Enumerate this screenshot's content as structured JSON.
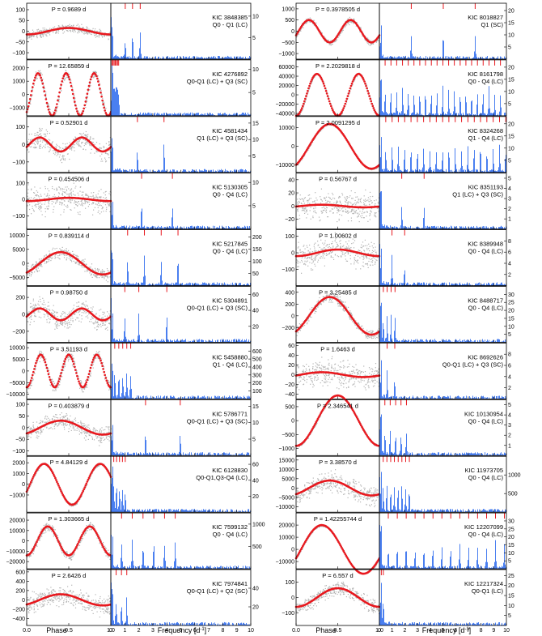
{
  "figure": {
    "left_xlabel_phase": "Phase",
    "left_xlabel_freq": "Frequency [d",
    "right_xlabel_phase": "Phase",
    "right_xlabel_freq": "Frequency [d",
    "freq_unit_sup": "-1",
    "freq_unit_close": "]"
  },
  "colors": {
    "phase_points": "#b4b4b4",
    "model_curve": "#e8181e",
    "spectrum": "#4a7ff0",
    "marker": "#e8181e",
    "axis": "#000000"
  },
  "chart_data": [
    {
      "type": "scatter",
      "column": "left",
      "row": 0,
      "period_label": "P = 0.9689 d",
      "kic": "KIC 3848385",
      "quarters": "Q0 - Q1 (LC)",
      "phase_yticks": [
        -100,
        -50,
        0,
        50,
        100
      ],
      "phase_ylim": [
        -130,
        130
      ],
      "amp": 15,
      "cycles": 1,
      "scatter": 18,
      "freq_ticks": [
        5,
        10
      ],
      "freq_ylim": [
        0,
        13
      ],
      "markers": [
        1.03,
        1.55,
        2.1
      ]
    },
    {
      "type": "scatter",
      "column": "left",
      "row": 1,
      "period_label": "P = 12.65859 d",
      "kic": "KIC 4276892",
      "quarters": "Q0-Q1 (LC) + Q3 (SC)",
      "phase_yticks": [
        -1000,
        0,
        1000,
        2000
      ],
      "phase_ylim": [
        -1600,
        2600
      ],
      "amp": 1600,
      "cycles": 3,
      "scatter": 20,
      "freq_ticks": [
        5,
        10
      ],
      "freq_ylim": [
        0,
        12
      ],
      "markers": [
        0.08,
        0.16,
        0.24,
        0.32,
        0.4,
        0.48,
        0.56
      ]
    },
    {
      "type": "scatter",
      "column": "left",
      "row": 2,
      "period_label": "P = 0.52901 d",
      "kic": "KIC 4581434",
      "quarters": "Q1 (LC) + Q3 (SC)",
      "phase_yticks": [
        -100,
        0,
        100
      ],
      "phase_ylim": [
        -160,
        160
      ],
      "amp": 40,
      "cycles": 2,
      "scatter": 40,
      "freq_ticks": [
        5,
        10,
        15
      ],
      "freq_ylim": [
        0,
        17
      ],
      "markers": [
        1.9,
        3.8
      ]
    },
    {
      "type": "scatter",
      "column": "left",
      "row": 3,
      "period_label": "P = 0.454506 d",
      "kic": "KIC 5130305",
      "quarters": "Q0 - Q4 (LC)",
      "phase_yticks": [
        -100,
        0,
        100
      ],
      "phase_ylim": [
        -180,
        160
      ],
      "amp": 10,
      "cycles": 1,
      "scatter": 55,
      "freq_ticks": [
        5,
        10
      ],
      "freq_ylim": [
        0,
        12
      ],
      "markers": [
        2.2,
        4.4
      ]
    },
    {
      "type": "scatter",
      "column": "left",
      "row": 4,
      "period_label": "P = 0.839114 d",
      "kic": "KIC 5217845",
      "quarters": "Q0 - Q4 (LC)",
      "phase_yticks": [
        -5000,
        0,
        5000,
        10000
      ],
      "phase_ylim": [
        -8000,
        12000
      ],
      "amp": 4000,
      "cycles": 1,
      "scatter": 25,
      "freq_ticks": [
        50,
        100,
        150,
        200
      ],
      "freq_ylim": [
        0,
        230
      ],
      "markers": [
        1.2,
        2.4,
        3.6,
        4.8
      ]
    },
    {
      "type": "scatter",
      "column": "left",
      "row": 5,
      "period_label": "P = 0.98750 d",
      "kic": "KIC 5304891",
      "quarters": "Q0-Q1 (LC) + Q3 (SC)",
      "phase_yticks": [
        -200,
        0,
        200
      ],
      "phase_ylim": [
        -330,
        330
      ],
      "amp": 70,
      "cycles": 2,
      "scatter": 45,
      "freq_ticks": [
        20,
        40,
        60
      ],
      "freq_ylim": [
        0,
        70
      ],
      "markers": [
        1.0,
        2.0,
        4.0
      ]
    },
    {
      "type": "scatter",
      "column": "left",
      "row": 6,
      "period_label": "P = 3.51193 d",
      "kic": "KIC 5458880",
      "quarters": "Q1 - Q4 (LC)",
      "phase_yticks": [
        -10000,
        -5000,
        0,
        5000,
        10000
      ],
      "phase_ylim": [
        -12000,
        12000
      ],
      "amp": 7000,
      "cycles": 3,
      "scatter": 22,
      "freq_ticks": [
        100,
        200,
        300,
        400,
        500,
        600
      ],
      "freq_ylim": [
        0,
        700
      ],
      "markers": [
        0.28,
        0.57,
        0.85,
        1.14,
        1.42
      ]
    },
    {
      "type": "scatter",
      "column": "left",
      "row": 7,
      "period_label": "P = 0.403879 d",
      "kic": "KIC 5786771",
      "quarters": "Q0-Q1 (LC) + Q3 (SC)",
      "phase_yticks": [
        -100,
        -50,
        0,
        50,
        100
      ],
      "phase_ylim": [
        -120,
        120
      ],
      "amp": 30,
      "cycles": 1,
      "scatter": 35,
      "freq_ticks": [
        5,
        10,
        15
      ],
      "freq_ylim": [
        0,
        17
      ],
      "markers": [
        2.48,
        4.96
      ]
    },
    {
      "type": "scatter",
      "column": "left",
      "row": 8,
      "period_label": "P = 4.84129 d",
      "kic": "KIC 6128830",
      "quarters": "Q0-Q1,Q3-Q4 (LC)",
      "phase_yticks": [
        -1000,
        0,
        1000,
        2000
      ],
      "phase_ylim": [
        -2600,
        2600
      ],
      "amp": 1900,
      "cycles": 1.5,
      "scatter": 6,
      "freq_ticks": [
        20,
        40,
        60
      ],
      "freq_ylim": [
        0,
        70
      ],
      "markers": [
        0.21,
        0.41,
        0.62,
        0.83,
        1.03
      ]
    },
    {
      "type": "scatter",
      "column": "left",
      "row": 9,
      "period_label": "P = 1.303665 d",
      "kic": "KIC 7599132",
      "quarters": "Q0 - Q4 (LC)",
      "phase_yticks": [
        -20000,
        -10000,
        0,
        10000,
        20000
      ],
      "phase_ylim": [
        -27000,
        27000
      ],
      "amp": 14000,
      "cycles": 2,
      "scatter": 18,
      "freq_ticks": [
        500,
        1000
      ],
      "freq_ylim": [
        0,
        1250
      ],
      "markers": [
        0.77,
        1.53,
        2.3,
        3.07,
        3.84,
        4.6
      ]
    },
    {
      "type": "scatter",
      "column": "left",
      "row": 10,
      "period_label": "P = 2.6426 d",
      "kic": "KIC 7974841",
      "quarters": "Q0-Q1 (LC) + Q2 (SC)",
      "phase_yticks": [
        -400,
        -200,
        0,
        200,
        400,
        600
      ],
      "phase_ylim": [
        -550,
        650
      ],
      "amp": 120,
      "cycles": 1,
      "scatter": 40,
      "freq_ticks": [
        20,
        40
      ],
      "freq_ylim": [
        0,
        60
      ],
      "markers": [
        0.38,
        0.76,
        1.14
      ]
    },
    {
      "type": "scatter",
      "column": "right",
      "row": 0,
      "period_label": "P = 0.3978505 d",
      "kic": "KIC 8018827",
      "quarters": "Q1 (SC)",
      "phase_yticks": [
        -1000,
        -500,
        0,
        500,
        1000
      ],
      "phase_ylim": [
        -1250,
        1250
      ],
      "amp": 500,
      "cycles": 2,
      "scatter": 12,
      "freq_ticks": [
        5,
        10,
        15,
        20
      ],
      "freq_ylim": [
        0,
        23
      ],
      "markers": [
        2.51,
        5.03,
        7.54
      ]
    },
    {
      "type": "scatter",
      "column": "right",
      "row": 1,
      "period_label": "P = 2.2029818 d",
      "kic": "KIC 8161798",
      "quarters": "Q0 - Q4 (LC)",
      "phase_yticks": [
        -40000,
        -20000,
        0,
        20000,
        40000,
        60000
      ],
      "phase_ylim": [
        -45000,
        75000
      ],
      "amp": 45000,
      "cycles": 2,
      "scatter": 6,
      "freq_ticks": [
        5,
        10,
        15,
        20
      ],
      "freq_ylim": [
        0,
        23
      ],
      "markers": [
        0.45,
        0.91,
        1.36,
        1.82,
        2.27,
        2.72,
        3.18,
        3.63,
        4.09,
        4.54,
        5.0,
        5.45,
        5.9,
        6.36,
        6.81,
        7.26,
        7.72,
        8.17,
        8.63,
        9.08,
        9.53
      ]
    },
    {
      "type": "scatter",
      "column": "right",
      "row": 2,
      "period_label": "P = 2.0091295 d",
      "kic": "KIC 8324268",
      "quarters": "Q1 - Q4 (LC)",
      "phase_yticks": [
        -10000,
        0,
        10000
      ],
      "phase_ylim": [
        -14000,
        16000
      ],
      "amp": 12000,
      "cycles": 1,
      "scatter": 4,
      "freq_ticks": [
        5,
        10,
        15,
        20
      ],
      "freq_ylim": [
        0,
        23
      ],
      "markers": [
        0.5,
        1.0,
        1.49,
        1.99,
        2.49,
        2.99,
        3.48,
        3.98,
        4.48,
        4.98,
        5.47,
        5.97,
        6.47,
        6.97,
        7.47,
        7.96,
        8.46,
        8.96,
        9.46,
        9.95
      ]
    },
    {
      "type": "scatter",
      "column": "right",
      "row": 3,
      "period_label": "P = 0.56767 d",
      "kic": "KIC 8351193",
      "quarters": "Q1 (LC) + Q3 (SC)",
      "phase_yticks": [
        -20,
        0,
        20,
        40
      ],
      "phase_ylim": [
        -35,
        50
      ],
      "amp": 2,
      "cycles": 1,
      "scatter": 60,
      "freq_ticks": [
        1,
        2,
        3,
        4,
        5
      ],
      "freq_ylim": [
        0,
        5.5
      ],
      "markers": [
        1.76,
        3.52
      ]
    },
    {
      "type": "scatter",
      "column": "right",
      "row": 4,
      "period_label": "P = 1.00602 d",
      "kic": "KIC 8389948",
      "quarters": "Q0 - Q4 (LC)",
      "phase_yticks": [
        -100,
        0,
        100
      ],
      "phase_ylim": [
        -200,
        140
      ],
      "amp": 20,
      "cycles": 1,
      "scatter": 55,
      "freq_ticks": [
        2,
        4,
        6,
        8
      ],
      "freq_ylim": [
        0,
        10
      ],
      "markers": [
        0.99,
        1.99
      ]
    },
    {
      "type": "scatter",
      "column": "right",
      "row": 5,
      "period_label": "P = 3.25485 d",
      "kic": "KIC 8488717",
      "quarters": "Q0 - Q4 (LC)",
      "phase_yticks": [
        -200,
        0,
        200,
        400
      ],
      "phase_ylim": [
        -450,
        500
      ],
      "amp": 320,
      "cycles": 1,
      "scatter": 20,
      "freq_ticks": [
        5,
        10,
        15,
        20,
        25,
        30
      ],
      "freq_ylim": [
        0,
        35
      ],
      "markers": [
        0.31,
        0.61,
        0.92,
        1.23
      ]
    },
    {
      "type": "scatter",
      "column": "right",
      "row": 6,
      "period_label": "P = 1.6463 d",
      "kic": "KIC 8692626",
      "quarters": "Q0-Q1 (LC) + Q3 (SC)",
      "phase_yticks": [
        -40,
        -20,
        0,
        20,
        40,
        60
      ],
      "phase_ylim": [
        -50,
        65
      ],
      "amp": 5,
      "cycles": 1,
      "scatter": 55,
      "freq_ticks": [
        2,
        4,
        6,
        8
      ],
      "freq_ylim": [
        0,
        10
      ],
      "markers": [
        0.61,
        1.21
      ]
    },
    {
      "type": "scatter",
      "column": "right",
      "row": 7,
      "period_label": "P = 2.346541 d",
      "kic": "KIC 10130954",
      "quarters": "Q0 - Q4 (LC)",
      "phase_yticks": [
        -1000,
        -500,
        0,
        500
      ],
      "phase_ylim": [
        -1250,
        750
      ],
      "amp": 900,
      "cycles": 1,
      "scatter": 5,
      "freq_ticks": [
        1,
        2,
        3,
        4,
        5
      ],
      "freq_ylim": [
        0,
        5.5
      ],
      "markers": [
        0.43,
        0.85,
        1.28,
        1.7,
        2.13
      ]
    },
    {
      "type": "scatter",
      "column": "right",
      "row": 8,
      "period_label": "P = 3.38570 d",
      "kic": "KIC 11973705",
      "quarters": "Q0 - Q4 (LC)",
      "phase_yticks": [
        -10000,
        -5000,
        0,
        5000,
        10000,
        15000
      ],
      "phase_ylim": [
        -13000,
        17000
      ],
      "amp": 4000,
      "cycles": 1,
      "scatter": 40,
      "freq_ticks": [
        500,
        1000
      ],
      "freq_ylim": [
        0,
        1500
      ],
      "markers": [
        0.3,
        0.59,
        0.89,
        1.18,
        1.48,
        1.77,
        2.07,
        2.36
      ]
    },
    {
      "type": "scatter",
      "column": "right",
      "row": 9,
      "period_label": "P = 1.42255744 d",
      "kic": "KIC 12207099",
      "quarters": "Q0 - Q4 (LC)",
      "phase_yticks": [
        -10000,
        0,
        10000,
        20000
      ],
      "phase_ylim": [
        -16000,
        30000
      ],
      "amp": 20000,
      "cycles": 1,
      "scatter": 4,
      "freq_ticks": [
        5,
        10,
        15,
        20,
        25,
        30
      ],
      "freq_ylim": [
        0,
        35
      ],
      "markers": [
        0.7,
        1.41,
        2.11,
        2.81,
        3.51,
        4.22,
        4.92,
        5.62,
        6.33,
        7.03,
        7.73,
        8.44,
        9.14,
        9.84
      ]
    },
    {
      "type": "scatter",
      "column": "right",
      "row": 10,
      "period_label": "P = 6.557 d",
      "kic": "KIC 12217324",
      "quarters": "Q0-Q1 (LC)",
      "phase_yticks": [
        -100,
        0,
        100
      ],
      "phase_ylim": [
        -180,
        180
      ],
      "amp": 60,
      "cycles": 1,
      "scatter": 30,
      "freq_ticks": [
        5,
        10,
        15,
        20,
        25
      ],
      "freq_ylim": [
        0,
        28
      ],
      "markers": [
        0.15,
        0.31
      ]
    }
  ]
}
